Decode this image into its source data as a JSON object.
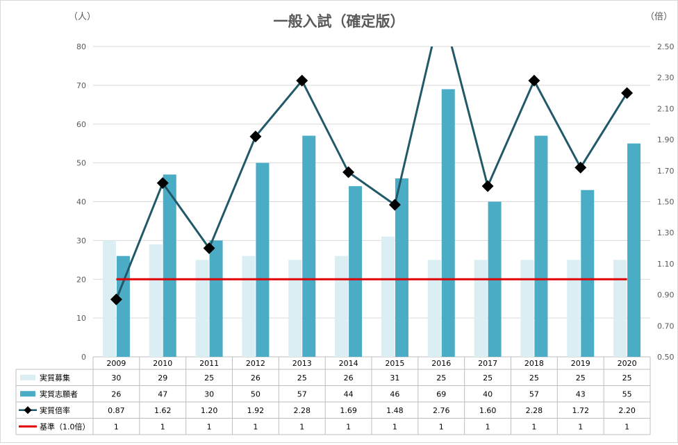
{
  "chart_data": {
    "type": "bar",
    "title": "一般入試（確定版）",
    "y_left_unit": "（人）",
    "y_right_unit": "（倍）",
    "y_left_range": [
      0,
      80
    ],
    "y_left_ticks": [
      "0",
      "10",
      "20",
      "30",
      "40",
      "50",
      "60",
      "70",
      "80"
    ],
    "y_right_range": [
      0.5,
      2.5
    ],
    "y_right_ticks": [
      "0.50",
      "0.70",
      "0.90",
      "1.10",
      "1.30",
      "1.50",
      "1.70",
      "1.90",
      "2.10",
      "2.30",
      "2.50"
    ],
    "categories": [
      "2009",
      "2010",
      "2011",
      "2012",
      "2013",
      "2014",
      "2015",
      "2016",
      "2017",
      "2018",
      "2019",
      "2020"
    ],
    "grid": true,
    "legend": "data-table",
    "series": [
      {
        "name": "実質募集",
        "kind": "bar",
        "axis": "left",
        "color": "#daeef3",
        "values": [
          30,
          29,
          25,
          26,
          25,
          26,
          31,
          25,
          25,
          25,
          25,
          25
        ],
        "labels": [
          "30",
          "29",
          "25",
          "26",
          "25",
          "26",
          "31",
          "25",
          "25",
          "25",
          "25",
          "25"
        ]
      },
      {
        "name": "実質志願者",
        "kind": "bar",
        "axis": "left",
        "color": "#4bacc6",
        "values": [
          26,
          47,
          30,
          50,
          57,
          44,
          46,
          69,
          40,
          57,
          43,
          55
        ],
        "labels": [
          "26",
          "47",
          "30",
          "50",
          "57",
          "44",
          "46",
          "69",
          "40",
          "57",
          "43",
          "55"
        ]
      },
      {
        "name": "実質倍率",
        "kind": "line",
        "axis": "right",
        "color": "#215968",
        "marker_color": "#000000",
        "values": [
          0.87,
          1.62,
          1.2,
          1.92,
          2.28,
          1.69,
          1.48,
          2.76,
          1.6,
          2.28,
          1.72,
          2.2
        ],
        "labels": [
          "0.87",
          "1.62",
          "1.20",
          "1.92",
          "2.28",
          "1.69",
          "1.48",
          "2.76",
          "1.60",
          "2.28",
          "1.72",
          "2.20"
        ]
      },
      {
        "name": "基準（1.0倍）",
        "kind": "line",
        "axis": "right",
        "color": "#e00000",
        "values": [
          1,
          1,
          1,
          1,
          1,
          1,
          1,
          1,
          1,
          1,
          1,
          1
        ],
        "labels": [
          "1",
          "1",
          "1",
          "1",
          "1",
          "1",
          "1",
          "1",
          "1",
          "1",
          "1",
          "1"
        ]
      }
    ]
  }
}
